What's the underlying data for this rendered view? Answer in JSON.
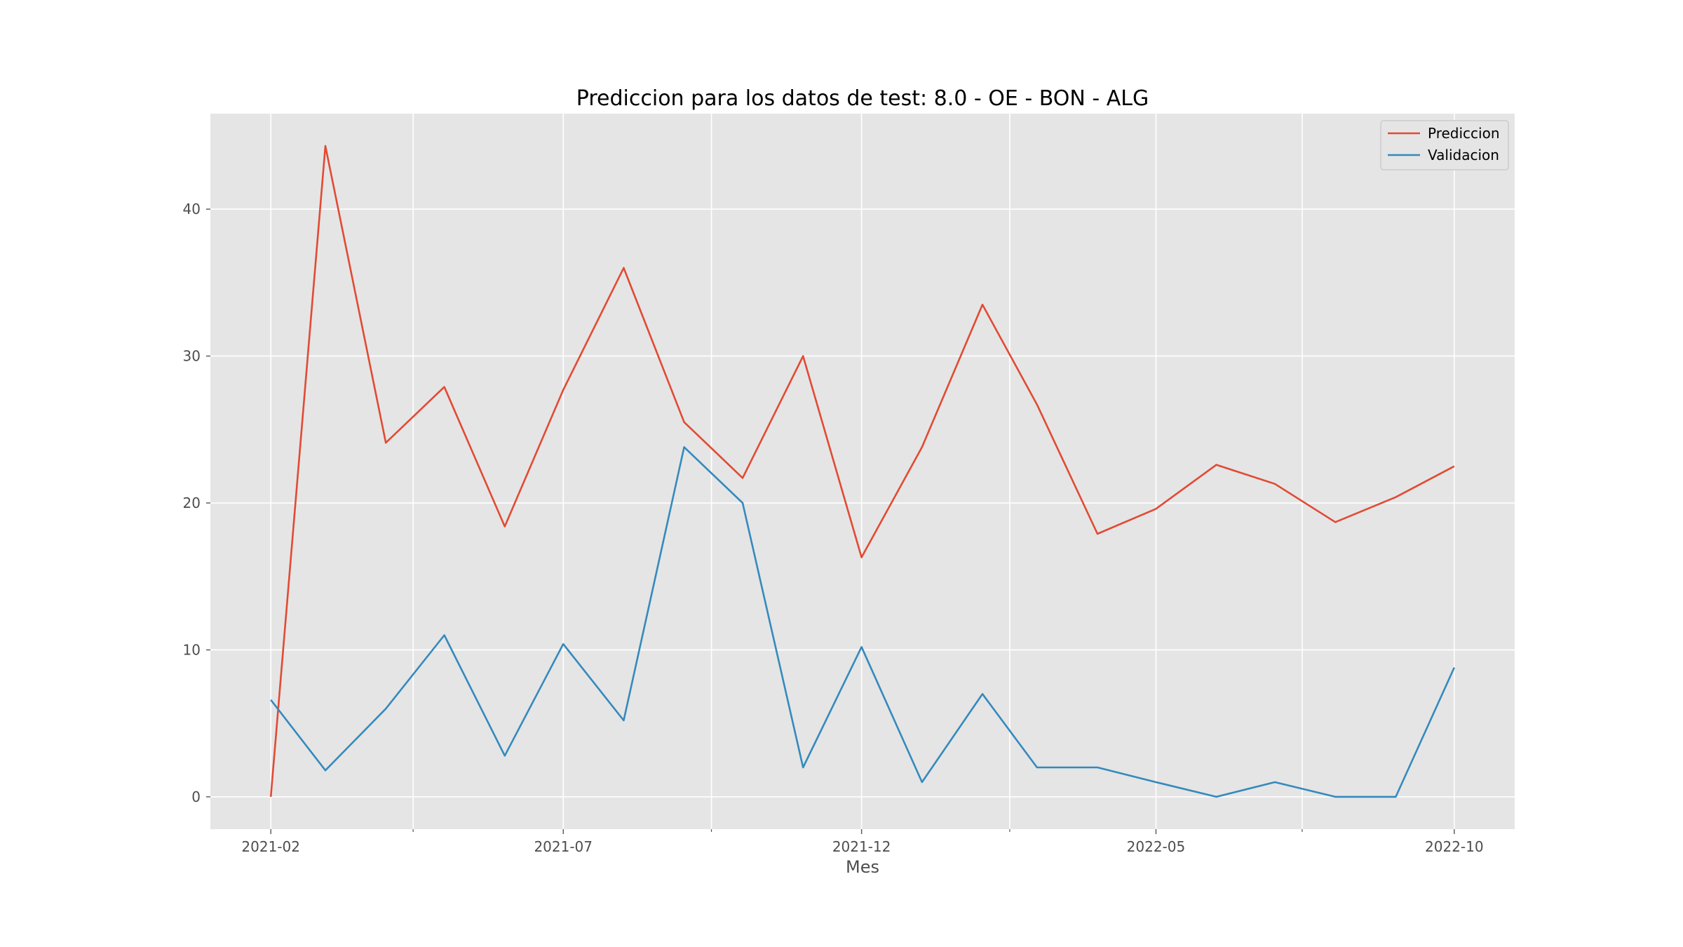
{
  "chart_data": {
    "type": "line",
    "title": "Prediccion para los datos de test: 8.0 - OE - BON - ALG",
    "xlabel": "Mes",
    "ylabel": "",
    "x": [
      "2021-02",
      "2021-03",
      "2021-04",
      "2021-05",
      "2021-06",
      "2021-07",
      "2021-08",
      "2021-09",
      "2021-10",
      "2021-11",
      "2021-12",
      "2022-01",
      "2022-02",
      "2022-03",
      "2022-04",
      "2022-05",
      "2022-06",
      "2022-07",
      "2022-08",
      "2022-09",
      "2022-10"
    ],
    "x_tick_labels": [
      "2021-02",
      "2021-07",
      "2021-12",
      "2022-05",
      "2022-10"
    ],
    "x_minor_ticks": [
      "2021-04-15",
      "2021-09-15",
      "2022-02-15",
      "2022-07-15"
    ],
    "xlim": [
      "2021-01-01",
      "2022-11-01"
    ],
    "y_ticks": [
      0,
      10,
      20,
      30,
      40
    ],
    "ylim": [
      -2.2,
      46.5
    ],
    "grid": true,
    "legend_position": "top-right",
    "series": [
      {
        "name": "Prediccion",
        "color": "#E24A33",
        "values": [
          0.0,
          44.3,
          24.1,
          27.9,
          18.4,
          27.7,
          36.0,
          25.5,
          21.7,
          30.0,
          16.3,
          23.8,
          33.5,
          26.7,
          17.9,
          19.6,
          22.6,
          21.3,
          18.7,
          20.4,
          22.5
        ]
      },
      {
        "name": "Validacion",
        "color": "#348ABD",
        "values": [
          6.6,
          1.8,
          6.0,
          11.0,
          2.8,
          10.4,
          5.2,
          23.8,
          20.0,
          2.0,
          10.2,
          1.0,
          7.0,
          2.0,
          2.0,
          1.0,
          0.0,
          1.0,
          0.0,
          0.0,
          8.8
        ]
      }
    ]
  }
}
